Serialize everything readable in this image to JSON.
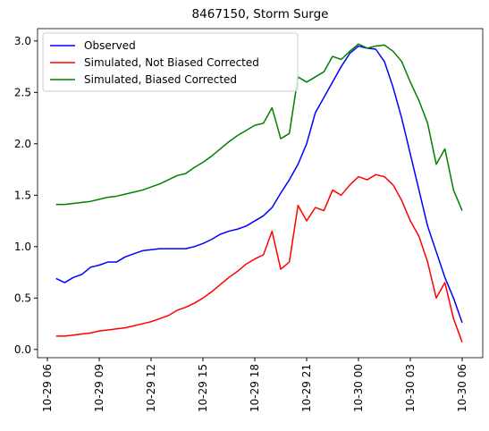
{
  "chart_data": {
    "type": "line",
    "title": "8467150, Storm Surge",
    "x": [
      6.5,
      7,
      7.5,
      8,
      8.5,
      9,
      9.5,
      10,
      10.5,
      11,
      11.5,
      12,
      12.5,
      13,
      13.5,
      14,
      14.5,
      15,
      15.5,
      16,
      16.5,
      17,
      17.5,
      18,
      18.5,
      19,
      19.5,
      20,
      20.5,
      21,
      21.5,
      22,
      22.5,
      23,
      23.5,
      24,
      24.5,
      25,
      25.5,
      26,
      26.5,
      27,
      27.5,
      28,
      28.5,
      29,
      29.5,
      30
    ],
    "series": [
      {
        "name": "Observed",
        "color": "#0000ff",
        "values": [
          0.69,
          0.65,
          0.7,
          0.73,
          0.8,
          0.82,
          0.85,
          0.85,
          0.9,
          0.93,
          0.96,
          0.97,
          0.98,
          0.98,
          0.98,
          0.98,
          1.0,
          1.03,
          1.07,
          1.12,
          1.15,
          1.17,
          1.2,
          1.25,
          1.3,
          1.38,
          1.52,
          1.65,
          1.8,
          2.0,
          2.3,
          2.45,
          2.6,
          2.75,
          2.88,
          2.95,
          2.93,
          2.92,
          2.8,
          2.55,
          2.25,
          1.9,
          1.55,
          1.2,
          0.95,
          0.7,
          0.5,
          0.26
        ]
      },
      {
        "name": "Simulated, Not Biased Corrected",
        "color": "#ff0000",
        "values": [
          0.13,
          0.13,
          0.14,
          0.15,
          0.16,
          0.18,
          0.19,
          0.2,
          0.21,
          0.23,
          0.25,
          0.27,
          0.3,
          0.33,
          0.38,
          0.41,
          0.45,
          0.5,
          0.56,
          0.63,
          0.7,
          0.76,
          0.83,
          0.88,
          0.92,
          1.15,
          0.78,
          0.85,
          1.4,
          1.25,
          1.38,
          1.35,
          1.55,
          1.5,
          1.6,
          1.68,
          1.65,
          1.7,
          1.68,
          1.6,
          1.45,
          1.25,
          1.1,
          0.85,
          0.5,
          0.65,
          0.3,
          0.07
        ]
      },
      {
        "name": "Simulated, Biased Corrected",
        "color": "#008000",
        "values": [
          1.41,
          1.41,
          1.42,
          1.43,
          1.44,
          1.46,
          1.48,
          1.49,
          1.51,
          1.53,
          1.55,
          1.58,
          1.61,
          1.65,
          1.69,
          1.71,
          1.77,
          1.82,
          1.88,
          1.95,
          2.02,
          2.08,
          2.13,
          2.18,
          2.2,
          2.35,
          2.05,
          2.1,
          2.65,
          2.6,
          2.65,
          2.7,
          2.85,
          2.82,
          2.9,
          2.97,
          2.93,
          2.95,
          2.96,
          2.9,
          2.8,
          2.6,
          2.42,
          2.2,
          1.8,
          1.95,
          1.55,
          1.35
        ]
      }
    ],
    "xlim": [
      5.43,
      31.19
    ],
    "xticks": [
      {
        "value": 6,
        "label": "10-29 06"
      },
      {
        "value": 9,
        "label": "10-29 09"
      },
      {
        "value": 12,
        "label": "10-29 12"
      },
      {
        "value": 15,
        "label": "10-29 15"
      },
      {
        "value": 18,
        "label": "10-29 18"
      },
      {
        "value": 21,
        "label": "10-29 21"
      },
      {
        "value": 24,
        "label": "10-30 00"
      },
      {
        "value": 27,
        "label": "10-30 03"
      },
      {
        "value": 30,
        "label": "10-30 06"
      }
    ],
    "ylim": [
      -0.08,
      3.12
    ],
    "yticks": [
      {
        "value": 0,
        "label": "0.0"
      },
      0.5,
      {
        "value": 1,
        "label": "1.0"
      },
      1.5,
      {
        "value": 2,
        "label": "2.0"
      },
      2.5,
      {
        "value": 3,
        "label": "3.0"
      }
    ],
    "grid": false,
    "legend": "upper left"
  }
}
